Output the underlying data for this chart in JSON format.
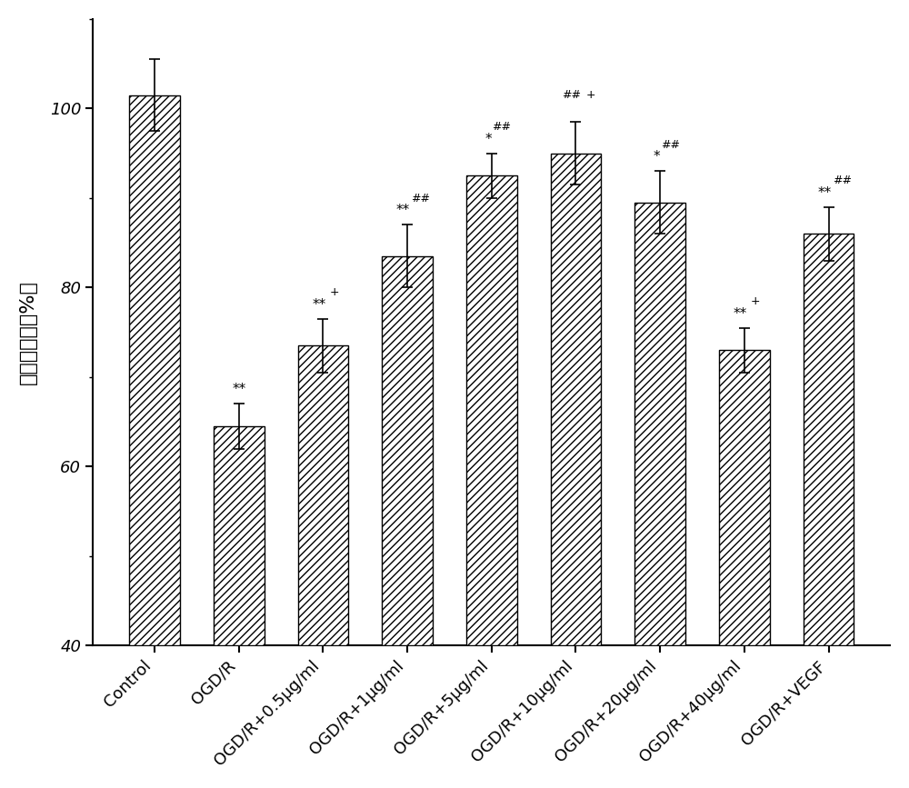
{
  "categories": [
    "Control",
    "OGD/R",
    "OGD/R+0.5μg/ml",
    "OGD/R+1μg/ml",
    "OGD/R+5μg/ml",
    "OGD/R+10μg/ml",
    "OGD/R+20μg/ml",
    "OGD/R+40μg/ml",
    "OGD/R+VEGF"
  ],
  "values": [
    101.5,
    64.5,
    73.5,
    83.5,
    92.5,
    95.0,
    89.5,
    73.0,
    86.0
  ],
  "errors": [
    4.0,
    2.5,
    3.0,
    3.5,
    2.5,
    3.5,
    3.5,
    2.5,
    3.0
  ],
  "ylabel": "细胞存活率（%）",
  "ylim": [
    40,
    110
  ],
  "yticks": [
    40,
    60,
    80,
    100
  ],
  "bar_color": "#ffffff",
  "bar_edgecolor": "#000000",
  "hatch": "////",
  "annotation_fontsize": 11,
  "label_fontsize": 16,
  "tick_fontsize": 13,
  "annot_texts": [
    "",
    "**",
    "**+",
    "**##",
    "*##",
    "##+",
    "*##",
    "**+",
    "**##"
  ]
}
